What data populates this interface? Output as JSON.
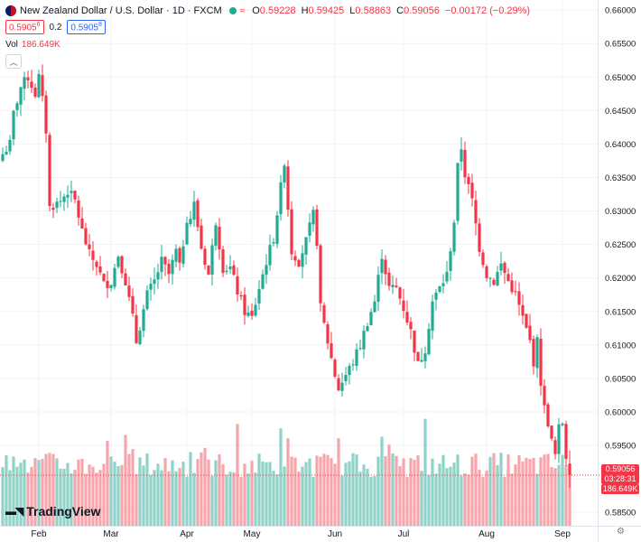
{
  "header": {
    "title": "New Zealand Dollar / U.S. Dollar · 1D · FXCM",
    "ohlc": {
      "o": "0.59228",
      "h": "0.59425",
      "l": "0.58863",
      "c": "0.59056",
      "chg": "−0.00172 (−0.29%)"
    },
    "bid": "0.5905",
    "bid_sup": "6",
    "spread": "0.2",
    "ask": "0.5905",
    "ask_sup": "8",
    "volume_label": "Vol",
    "volume_value": "186.649K"
  },
  "price_tag": {
    "price": "0.59056",
    "countdown": "03:28:31",
    "volume": "186.649K"
  },
  "brand": "TradingView",
  "colors": {
    "up": "#22ab94",
    "down": "#f23645",
    "vol_up": "#8fd3c9",
    "vol_down": "#f5a5ab"
  },
  "chart_data": {
    "type": "candlestick",
    "symbol": "NZDUSD",
    "interval": "1D",
    "y_ticks": [
      0.585,
      0.59,
      0.595,
      0.6,
      0.605,
      0.61,
      0.615,
      0.62,
      0.625,
      0.63,
      0.635,
      0.64,
      0.645,
      0.65,
      0.655,
      0.66
    ],
    "y_tick_labels": [
      "0.58500",
      "0.59000",
      "0.59500",
      "0.60000",
      "0.60500",
      "0.61000",
      "0.61500",
      "0.62000",
      "0.62500",
      "0.63000",
      "0.63500",
      "0.64000",
      "0.64500",
      "0.65000",
      "0.65500",
      "0.66000"
    ],
    "ylim": [
      0.583,
      0.6615
    ],
    "x_labels": [
      {
        "label": "Feb",
        "index": 10
      },
      {
        "label": "Mar",
        "index": 30
      },
      {
        "label": "Apr",
        "index": 51
      },
      {
        "label": "May",
        "index": 69
      },
      {
        "label": "Jun",
        "index": 92
      },
      {
        "label": "Jul",
        "index": 111
      },
      {
        "label": "Aug",
        "index": 134
      },
      {
        "label": "Sep",
        "index": 155
      }
    ],
    "close_anchors": [
      [
        0,
        0.6385
      ],
      [
        2,
        0.64
      ],
      [
        3,
        0.6445
      ],
      [
        5,
        0.6485
      ],
      [
        7,
        0.65
      ],
      [
        9,
        0.6475
      ],
      [
        10,
        0.65
      ],
      [
        11,
        0.6465
      ],
      [
        12,
        0.642
      ],
      [
        13,
        0.6305
      ],
      [
        16,
        0.6315
      ],
      [
        18,
        0.633
      ],
      [
        20,
        0.6315
      ],
      [
        22,
        0.627
      ],
      [
        24,
        0.6235
      ],
      [
        26,
        0.622
      ],
      [
        28,
        0.619
      ],
      [
        30,
        0.6195
      ],
      [
        32,
        0.6235
      ],
      [
        34,
        0.6195
      ],
      [
        36,
        0.614
      ],
      [
        37,
        0.6105
      ],
      [
        40,
        0.6175
      ],
      [
        42,
        0.6195
      ],
      [
        44,
        0.6225
      ],
      [
        46,
        0.6205
      ],
      [
        48,
        0.624
      ],
      [
        49,
        0.6215
      ],
      [
        51,
        0.629
      ],
      [
        52,
        0.629
      ],
      [
        53,
        0.631
      ],
      [
        55,
        0.6245
      ],
      [
        57,
        0.6205
      ],
      [
        59,
        0.6285
      ],
      [
        61,
        0.6215
      ],
      [
        63,
        0.6215
      ],
      [
        65,
        0.618
      ],
      [
        67,
        0.615
      ],
      [
        69,
        0.614
      ],
      [
        71,
        0.6185
      ],
      [
        73,
        0.6225
      ],
      [
        75,
        0.626
      ],
      [
        77,
        0.6335
      ],
      [
        78,
        0.6375
      ],
      [
        79,
        0.6305
      ],
      [
        80,
        0.624
      ],
      [
        82,
        0.6225
      ],
      [
        84,
        0.6255
      ],
      [
        86,
        0.6295
      ],
      [
        87,
        0.6255
      ],
      [
        88,
        0.6155
      ],
      [
        90,
        0.6105
      ],
      [
        92,
        0.6055
      ],
      [
        93,
        0.6035
      ],
      [
        95,
        0.6055
      ],
      [
        97,
        0.6075
      ],
      [
        99,
        0.61
      ],
      [
        101,
        0.6135
      ],
      [
        103,
        0.6165
      ],
      [
        105,
        0.6235
      ],
      [
        107,
        0.6185
      ],
      [
        109,
        0.6185
      ],
      [
        111,
        0.6155
      ],
      [
        113,
        0.612
      ],
      [
        115,
        0.607
      ],
      [
        117,
        0.6095
      ],
      [
        119,
        0.6165
      ],
      [
        121,
        0.6185
      ],
      [
        123,
        0.6205
      ],
      [
        125,
        0.6285
      ],
      [
        126,
        0.6365
      ],
      [
        127,
        0.6395
      ],
      [
        128,
        0.6355
      ],
      [
        130,
        0.6315
      ],
      [
        132,
        0.6245
      ],
      [
        134,
        0.6205
      ],
      [
        136,
        0.6195
      ],
      [
        138,
        0.622
      ],
      [
        140,
        0.6195
      ],
      [
        142,
        0.6175
      ],
      [
        144,
        0.614
      ],
      [
        146,
        0.6105
      ],
      [
        147,
        0.6075
      ],
      [
        148,
        0.6105
      ],
      [
        149,
        0.6045
      ],
      [
        150,
        0.6005
      ],
      [
        151,
        0.5985
      ],
      [
        152,
        0.5955
      ],
      [
        153,
        0.5935
      ],
      [
        154,
        0.5975
      ],
      [
        155,
        0.5985
      ],
      [
        156,
        0.5935
      ],
      [
        157,
        0.5906
      ]
    ],
    "last_candle": {
      "open": 0.59228,
      "high": 0.59425,
      "low": 0.58863,
      "close": 0.59056
    },
    "volume_max": 160000
  }
}
